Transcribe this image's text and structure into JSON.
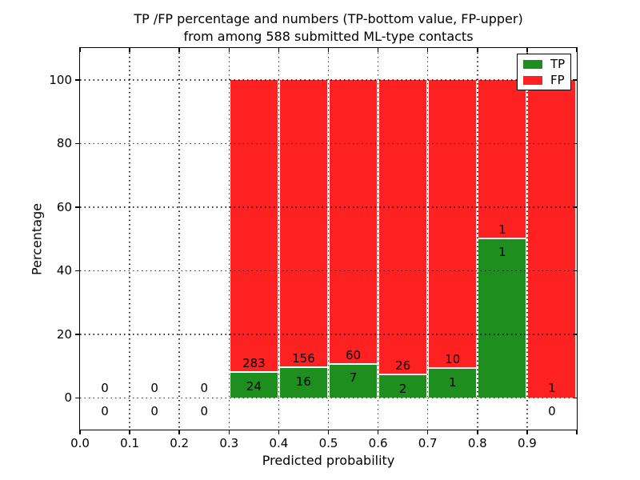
{
  "chart_data": {
    "type": "bar",
    "stacked": true,
    "title_lines": [
      "TP /FP percentage and numbers (TP-bottom value, FP-upper)",
      "from among 588 submitted ML-type contacts"
    ],
    "xlabel": "Predicted probability",
    "ylabel": "Percentage",
    "xlim": [
      0.0,
      1.0
    ],
    "ylim": [
      -10,
      110
    ],
    "bin_edges": [
      0.0,
      0.1,
      0.2,
      0.3,
      0.4,
      0.5,
      0.6,
      0.7,
      0.8,
      0.9,
      1.0
    ],
    "xtick_labels": [
      "0.0",
      "0.1",
      "0.2",
      "0.3",
      "0.4",
      "0.5",
      "0.6",
      "0.7",
      "0.8",
      "0.9"
    ],
    "ytick_values": [
      0,
      20,
      40,
      60,
      80,
      100
    ],
    "grid": "dotted",
    "series": [
      {
        "name": "TP",
        "color": "#1e8e1e",
        "counts": [
          0,
          0,
          0,
          24,
          16,
          7,
          2,
          1,
          1,
          0
        ]
      },
      {
        "name": "FP",
        "color": "#fd2121",
        "counts": [
          0,
          0,
          0,
          283,
          156,
          60,
          26,
          10,
          1,
          1
        ]
      }
    ],
    "legend": {
      "position": "upper right",
      "items": [
        {
          "label": "TP",
          "color": "#1e8e1e"
        },
        {
          "label": "FP",
          "color": "#fd2121"
        }
      ]
    }
  }
}
